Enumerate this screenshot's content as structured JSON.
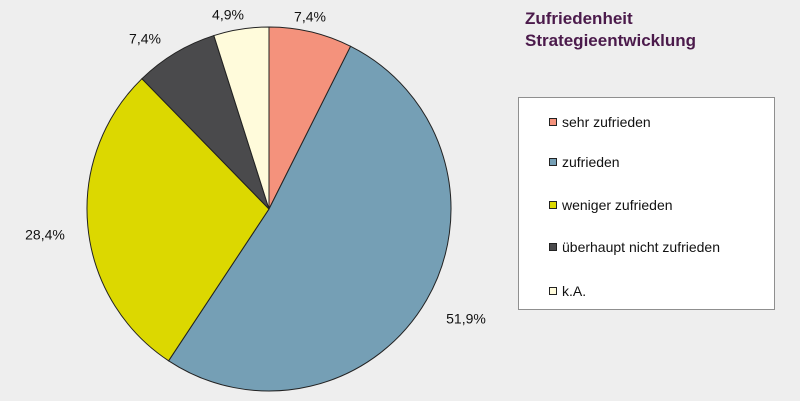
{
  "chart_data": {
    "type": "pie",
    "title_lines": [
      "Zufriedenheit",
      "Strategieentwicklung"
    ],
    "slices": [
      {
        "label": "sehr zufrieden",
        "value": 7.4,
        "display": "7,4%",
        "color": "#f4927c"
      },
      {
        "label": "zufrieden",
        "value": 51.9,
        "display": "51,9%",
        "color": "#759fb5"
      },
      {
        "label": "weniger zufrieden",
        "value": 28.4,
        "display": "28,4%",
        "color": "#dcd800"
      },
      {
        "label": "überhaupt nicht zufrieden",
        "value": 7.4,
        "display": "7,4%",
        "color": "#4a4a4c"
      },
      {
        "label": "k.A.",
        "value": 4.9,
        "display": "4,9%",
        "color": "#fffbdb"
      }
    ],
    "legend_position": "right",
    "start_angle": "12 o'clock, clockwise"
  }
}
